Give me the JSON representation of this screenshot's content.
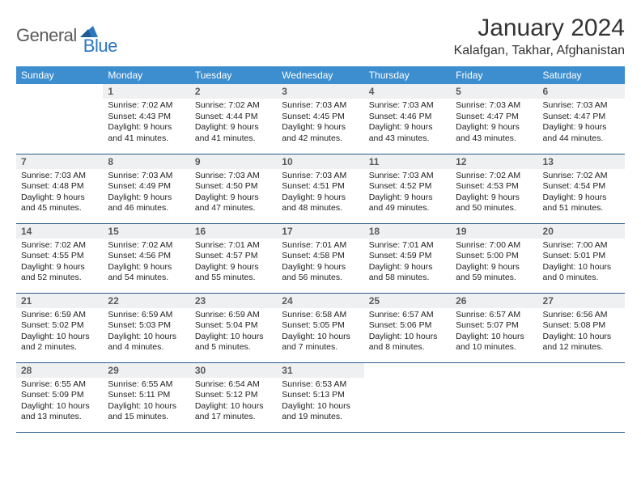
{
  "brand": {
    "word1": "General",
    "word2": "Blue"
  },
  "title": "January 2024",
  "location": "Kalafgan, Takhar, Afghanistan",
  "colors": {
    "header_bg": "#3d8ecf",
    "header_text": "#ffffff",
    "daynum_bg": "#eef0f2",
    "row_border": "#2b5d8a",
    "logo_gray": "#5a5a5a",
    "logo_blue": "#2b77c0"
  },
  "daynames": [
    "Sunday",
    "Monday",
    "Tuesday",
    "Wednesday",
    "Thursday",
    "Friday",
    "Saturday"
  ],
  "weeks": [
    [
      null,
      {
        "n": "1",
        "sr": "7:02 AM",
        "ss": "4:43 PM",
        "dl": "9 hours and 41 minutes."
      },
      {
        "n": "2",
        "sr": "7:02 AM",
        "ss": "4:44 PM",
        "dl": "9 hours and 41 minutes."
      },
      {
        "n": "3",
        "sr": "7:03 AM",
        "ss": "4:45 PM",
        "dl": "9 hours and 42 minutes."
      },
      {
        "n": "4",
        "sr": "7:03 AM",
        "ss": "4:46 PM",
        "dl": "9 hours and 43 minutes."
      },
      {
        "n": "5",
        "sr": "7:03 AM",
        "ss": "4:47 PM",
        "dl": "9 hours and 43 minutes."
      },
      {
        "n": "6",
        "sr": "7:03 AM",
        "ss": "4:47 PM",
        "dl": "9 hours and 44 minutes."
      }
    ],
    [
      {
        "n": "7",
        "sr": "7:03 AM",
        "ss": "4:48 PM",
        "dl": "9 hours and 45 minutes."
      },
      {
        "n": "8",
        "sr": "7:03 AM",
        "ss": "4:49 PM",
        "dl": "9 hours and 46 minutes."
      },
      {
        "n": "9",
        "sr": "7:03 AM",
        "ss": "4:50 PM",
        "dl": "9 hours and 47 minutes."
      },
      {
        "n": "10",
        "sr": "7:03 AM",
        "ss": "4:51 PM",
        "dl": "9 hours and 48 minutes."
      },
      {
        "n": "11",
        "sr": "7:03 AM",
        "ss": "4:52 PM",
        "dl": "9 hours and 49 minutes."
      },
      {
        "n": "12",
        "sr": "7:02 AM",
        "ss": "4:53 PM",
        "dl": "9 hours and 50 minutes."
      },
      {
        "n": "13",
        "sr": "7:02 AM",
        "ss": "4:54 PM",
        "dl": "9 hours and 51 minutes."
      }
    ],
    [
      {
        "n": "14",
        "sr": "7:02 AM",
        "ss": "4:55 PM",
        "dl": "9 hours and 52 minutes."
      },
      {
        "n": "15",
        "sr": "7:02 AM",
        "ss": "4:56 PM",
        "dl": "9 hours and 54 minutes."
      },
      {
        "n": "16",
        "sr": "7:01 AM",
        "ss": "4:57 PM",
        "dl": "9 hours and 55 minutes."
      },
      {
        "n": "17",
        "sr": "7:01 AM",
        "ss": "4:58 PM",
        "dl": "9 hours and 56 minutes."
      },
      {
        "n": "18",
        "sr": "7:01 AM",
        "ss": "4:59 PM",
        "dl": "9 hours and 58 minutes."
      },
      {
        "n": "19",
        "sr": "7:00 AM",
        "ss": "5:00 PM",
        "dl": "9 hours and 59 minutes."
      },
      {
        "n": "20",
        "sr": "7:00 AM",
        "ss": "5:01 PM",
        "dl": "10 hours and 0 minutes."
      }
    ],
    [
      {
        "n": "21",
        "sr": "6:59 AM",
        "ss": "5:02 PM",
        "dl": "10 hours and 2 minutes."
      },
      {
        "n": "22",
        "sr": "6:59 AM",
        "ss": "5:03 PM",
        "dl": "10 hours and 4 minutes."
      },
      {
        "n": "23",
        "sr": "6:59 AM",
        "ss": "5:04 PM",
        "dl": "10 hours and 5 minutes."
      },
      {
        "n": "24",
        "sr": "6:58 AM",
        "ss": "5:05 PM",
        "dl": "10 hours and 7 minutes."
      },
      {
        "n": "25",
        "sr": "6:57 AM",
        "ss": "5:06 PM",
        "dl": "10 hours and 8 minutes."
      },
      {
        "n": "26",
        "sr": "6:57 AM",
        "ss": "5:07 PM",
        "dl": "10 hours and 10 minutes."
      },
      {
        "n": "27",
        "sr": "6:56 AM",
        "ss": "5:08 PM",
        "dl": "10 hours and 12 minutes."
      }
    ],
    [
      {
        "n": "28",
        "sr": "6:55 AM",
        "ss": "5:09 PM",
        "dl": "10 hours and 13 minutes."
      },
      {
        "n": "29",
        "sr": "6:55 AM",
        "ss": "5:11 PM",
        "dl": "10 hours and 15 minutes."
      },
      {
        "n": "30",
        "sr": "6:54 AM",
        "ss": "5:12 PM",
        "dl": "10 hours and 17 minutes."
      },
      {
        "n": "31",
        "sr": "6:53 AM",
        "ss": "5:13 PM",
        "dl": "10 hours and 19 minutes."
      },
      null,
      null,
      null
    ]
  ],
  "labels": {
    "sunrise": "Sunrise: ",
    "sunset": "Sunset: ",
    "daylight": "Daylight: "
  }
}
